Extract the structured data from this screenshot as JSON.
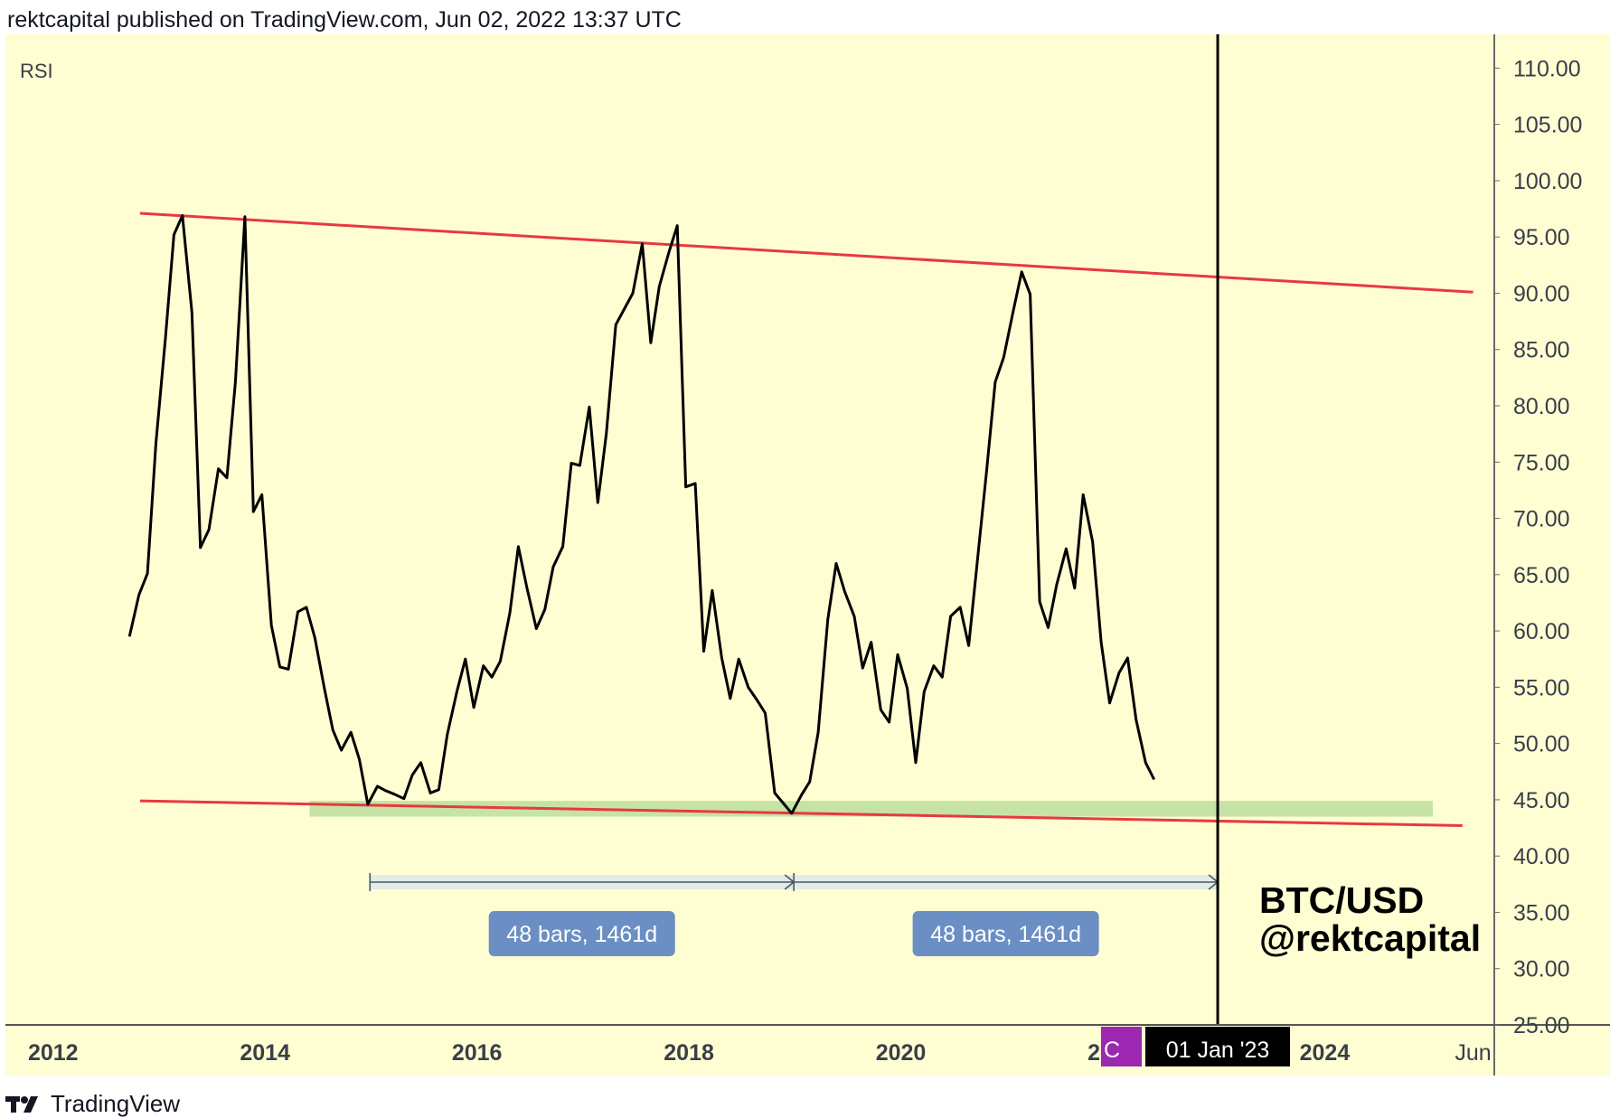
{
  "header": {
    "text": "rektcapital published on TradingView.com, Jun 02, 2022 13:37 UTC"
  },
  "footer": {
    "brand": "TradingView",
    "logo_icon": "tradingview-logo-icon"
  },
  "colors": {
    "pane_background": "#fffed3",
    "rsi_line": "#000000",
    "trendline": "#e8393f",
    "support_zone": "#c6e3a6",
    "range_tool": "#6b8fc4",
    "date_marker": "#000000",
    "crosshair_badge": "#9c27b0"
  },
  "pane": {
    "label": "RSI"
  },
  "watermark": {
    "line1": "BTC/USD",
    "line2": "@rektcapital"
  },
  "crosshair": {
    "date_label": "01 Jan '23",
    "partial_label": "C"
  },
  "range_labels": [
    "48 bars, 1461d",
    "48 bars, 1461d"
  ],
  "chart_data": {
    "type": "line",
    "title": "",
    "xlabel": "",
    "ylabel": "RSI",
    "xlim": [
      2011.55,
      2025.6
    ],
    "ylim": [
      25,
      113
    ],
    "y_ticks": [
      "110.00",
      "105.00",
      "100.00",
      "95.00",
      "90.00",
      "85.00",
      "80.00",
      "75.00",
      "70.00",
      "65.00",
      "60.00",
      "55.00",
      "50.00",
      "45.00",
      "40.00",
      "35.00",
      "30.00",
      "25.00"
    ],
    "x_ticks": [
      "2012",
      "2014",
      "2016",
      "2018",
      "2020",
      "2022",
      "2024",
      "Jun"
    ],
    "grid": false,
    "series": [
      {
        "x": [
          2012.72,
          2012.81,
          2012.89,
          2012.97,
          2013.06,
          2013.14,
          2013.22,
          2013.31,
          2013.39,
          2013.47,
          2013.56,
          2013.64,
          2013.72,
          2013.81,
          2013.89,
          2013.97,
          2014.06,
          2014.14,
          2014.22,
          2014.31,
          2014.39,
          2014.47,
          2014.56,
          2014.64,
          2014.72,
          2014.81,
          2014.89,
          2014.97,
          2015.06,
          2015.14,
          2015.22,
          2015.31,
          2015.39,
          2015.47,
          2015.56,
          2015.64,
          2015.72,
          2015.81,
          2015.89,
          2015.97,
          2016.06,
          2016.14,
          2016.22,
          2016.31,
          2016.39,
          2016.47,
          2016.56,
          2016.64,
          2016.72,
          2016.81,
          2016.89,
          2016.97,
          2017.06,
          2017.14,
          2017.22,
          2017.31,
          2017.39,
          2017.47,
          2017.56,
          2017.64,
          2017.72,
          2017.81,
          2017.89,
          2017.97,
          2018.06,
          2018.14,
          2018.22,
          2018.31,
          2018.39,
          2018.47,
          2018.56,
          2018.64,
          2018.72,
          2018.81,
          2018.89,
          2018.97,
          2019.06,
          2019.14,
          2019.22,
          2019.31,
          2019.39,
          2019.47,
          2019.56,
          2019.64,
          2019.72,
          2019.81,
          2019.89,
          2019.97,
          2020.06,
          2020.14,
          2020.22,
          2020.31,
          2020.39,
          2020.47,
          2020.56,
          2020.64,
          2020.72,
          2020.81,
          2020.89,
          2020.97,
          2021.06,
          2021.14,
          2021.22,
          2021.31,
          2021.39,
          2021.47,
          2021.56,
          2021.64,
          2021.72,
          2021.81,
          2021.89,
          2021.97,
          2022.06,
          2022.14,
          2022.22,
          2022.31,
          2022.39
        ],
        "y": [
          59.5,
          63.2,
          65.1,
          76.7,
          86.0,
          95.2,
          96.9,
          88.3,
          67.4,
          69.0,
          74.4,
          73.6,
          82.1,
          96.8,
          70.6,
          72.1,
          60.5,
          56.8,
          56.6,
          61.7,
          62.1,
          59.4,
          54.9,
          51.2,
          49.4,
          51.0,
          48.6,
          44.6,
          46.2,
          45.8,
          45.5,
          45.1,
          47.2,
          48.3,
          45.6,
          45.9,
          50.8,
          54.6,
          57.5,
          53.2,
          56.9,
          55.9,
          57.3,
          61.6,
          67.5,
          63.9,
          60.2,
          61.9,
          65.7,
          67.5,
          74.9,
          74.7,
          79.9,
          71.4,
          77.5,
          87.2,
          88.6,
          90.0,
          94.4,
          85.6,
          90.6,
          93.6,
          96.0,
          72.8,
          73.1,
          58.2,
          63.6,
          57.6,
          54.0,
          57.5,
          55.0,
          53.9,
          52.7,
          45.6,
          44.7,
          43.8,
          45.4,
          46.6,
          51.0,
          61.0,
          66.0,
          63.5,
          61.3,
          56.7,
          59.0,
          53.0,
          51.9,
          57.9,
          54.9,
          48.3,
          54.6,
          56.9,
          55.9,
          61.3,
          62.1,
          58.7,
          66.0,
          74.3,
          82.1,
          84.3,
          88.4,
          91.9,
          89.9,
          62.6,
          60.3,
          64.1,
          67.3,
          63.8,
          72.1,
          67.9,
          59.0,
          53.6,
          56.3,
          57.6,
          52.1,
          48.3,
          46.8
        ]
      }
    ],
    "trendlines": [
      {
        "name": "resistance",
        "from": [
          2012.82,
          97.1
        ],
        "to": [
          2025.4,
          90.1
        ]
      },
      {
        "name": "support",
        "from": [
          2012.82,
          44.9
        ],
        "to": [
          2025.3,
          42.7
        ]
      }
    ],
    "support_zone": {
      "x": [
        2014.42,
        2025.02
      ],
      "y": [
        43.5,
        44.9
      ]
    },
    "date_ranges": [
      {
        "from": 2014.99,
        "to": 2018.99,
        "bars": 48,
        "days": 1461
      },
      {
        "from": 2018.99,
        "to": 2022.99,
        "bars": 48,
        "days": 1461
      }
    ],
    "vertical_marker": {
      "x": 2022.99,
      "label": "01 Jan '23"
    }
  }
}
